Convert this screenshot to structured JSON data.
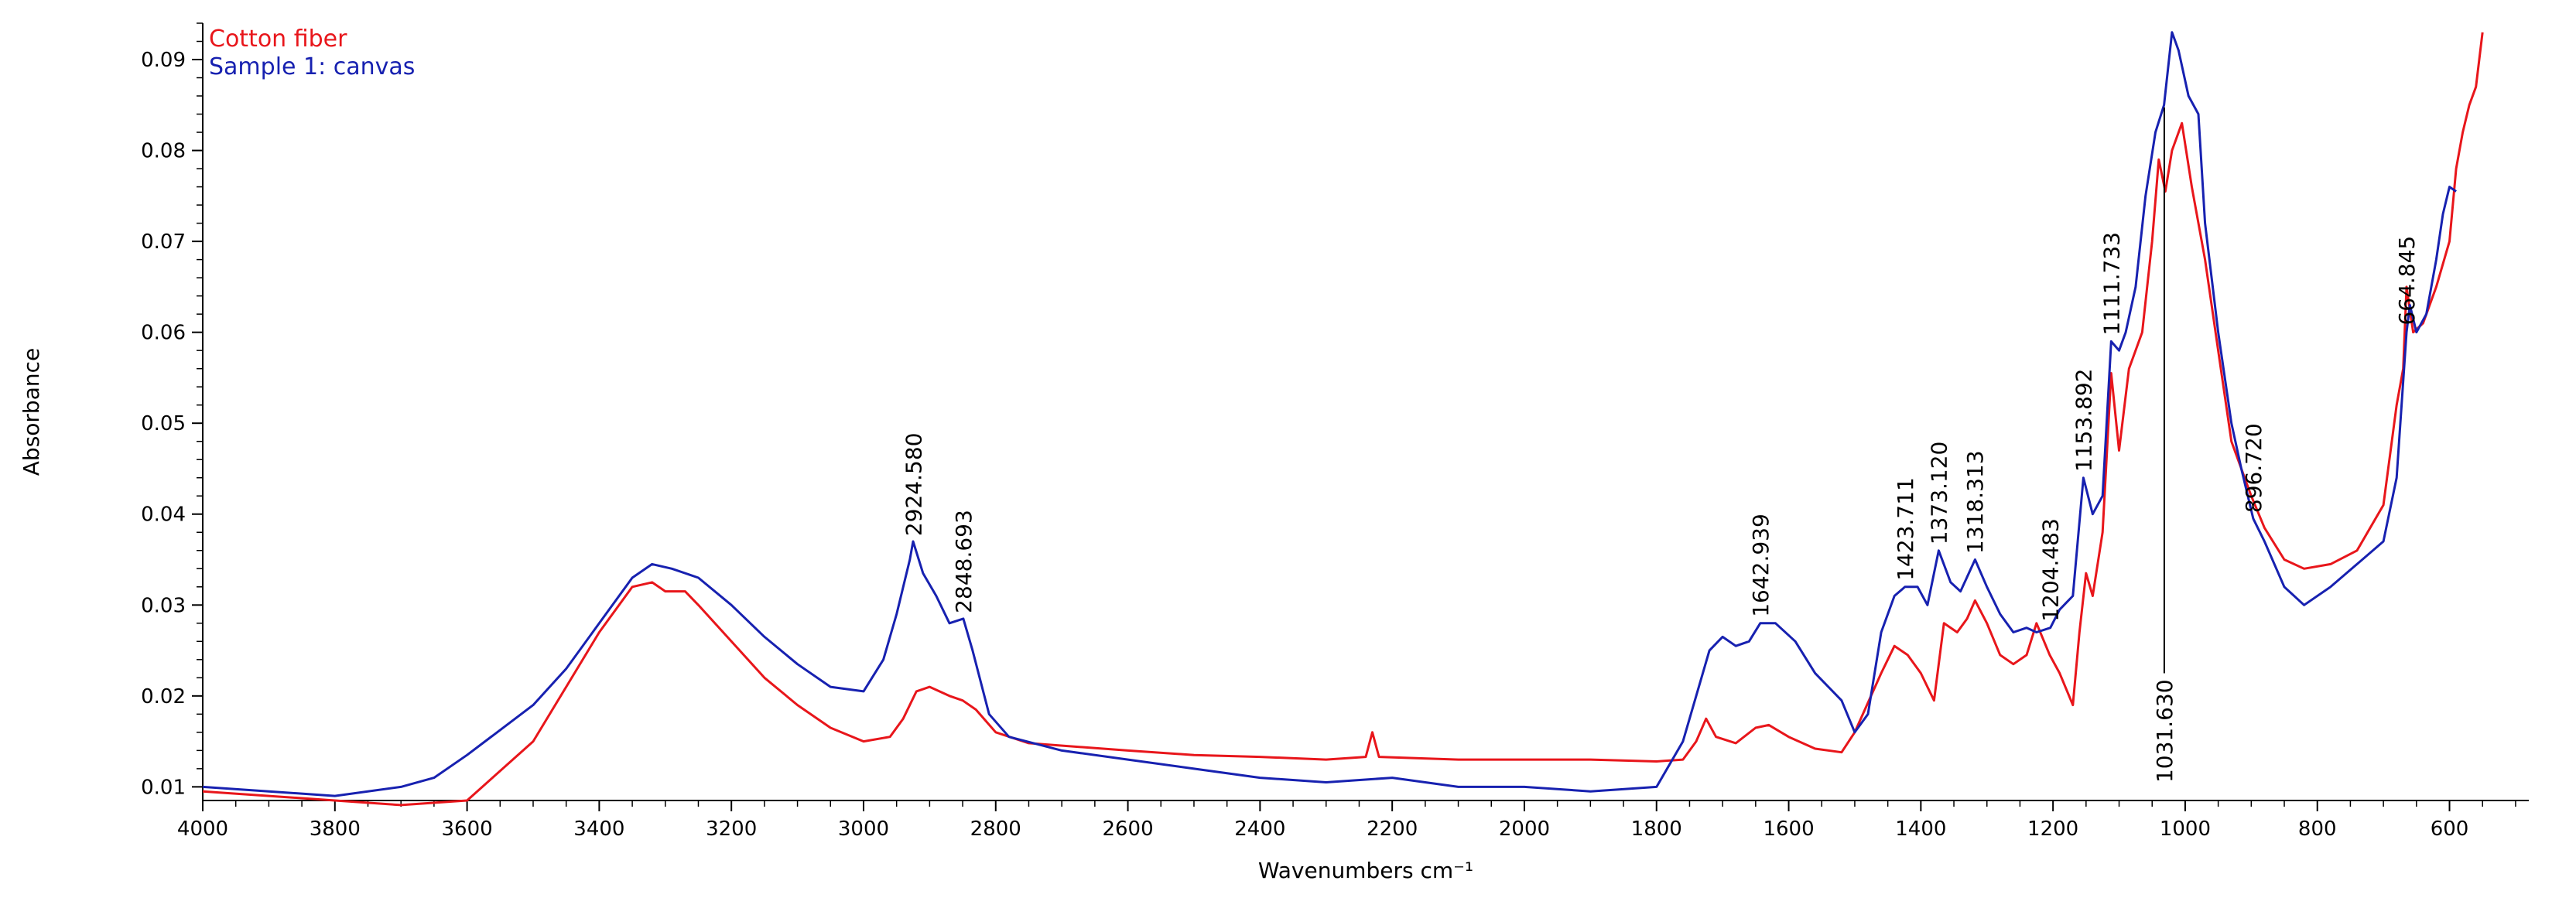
{
  "chart_data": {
    "type": "line",
    "title": "",
    "xlabel": "Wavenumbers cm⁻¹",
    "ylabel": "Absorbance",
    "xlim": [
      4000,
      480
    ],
    "ylim": [
      0.0085,
      0.094
    ],
    "x_reversed": true,
    "grid": false,
    "legend_position": "top-left",
    "x_ticks": [
      4000,
      3800,
      3600,
      3400,
      3200,
      3000,
      2800,
      2600,
      2400,
      2200,
      2000,
      1800,
      1600,
      1400,
      1200,
      1000,
      800,
      600
    ],
    "y_ticks": [
      0.01,
      0.02,
      0.03,
      0.04,
      0.05,
      0.06,
      0.07,
      0.08,
      0.09
    ],
    "series": [
      {
        "name": "Cotton fiber",
        "color": "#e8161b",
        "points": [
          [
            4000,
            0.0095
          ],
          [
            3900,
            0.009
          ],
          [
            3800,
            0.0085
          ],
          [
            3700,
            0.008
          ],
          [
            3600,
            0.0085
          ],
          [
            3500,
            0.015
          ],
          [
            3450,
            0.021
          ],
          [
            3400,
            0.027
          ],
          [
            3350,
            0.032
          ],
          [
            3320,
            0.0325
          ],
          [
            3300,
            0.0315
          ],
          [
            3270,
            0.0315
          ],
          [
            3250,
            0.03
          ],
          [
            3200,
            0.026
          ],
          [
            3150,
            0.022
          ],
          [
            3100,
            0.019
          ],
          [
            3050,
            0.0165
          ],
          [
            3000,
            0.015
          ],
          [
            2960,
            0.0155
          ],
          [
            2940,
            0.0175
          ],
          [
            2920,
            0.0205
          ],
          [
            2900,
            0.021
          ],
          [
            2870,
            0.02
          ],
          [
            2850,
            0.0195
          ],
          [
            2830,
            0.0185
          ],
          [
            2800,
            0.016
          ],
          [
            2750,
            0.0148
          ],
          [
            2600,
            0.014
          ],
          [
            2500,
            0.0135
          ],
          [
            2400,
            0.0133
          ],
          [
            2300,
            0.013
          ],
          [
            2240,
            0.0133
          ],
          [
            2230,
            0.016
          ],
          [
            2220,
            0.0133
          ],
          [
            2100,
            0.013
          ],
          [
            2000,
            0.013
          ],
          [
            1900,
            0.013
          ],
          [
            1800,
            0.0128
          ],
          [
            1760,
            0.013
          ],
          [
            1740,
            0.015
          ],
          [
            1725,
            0.0175
          ],
          [
            1710,
            0.0155
          ],
          [
            1680,
            0.0148
          ],
          [
            1650,
            0.0165
          ],
          [
            1630,
            0.0168
          ],
          [
            1600,
            0.0155
          ],
          [
            1560,
            0.0142
          ],
          [
            1520,
            0.0138
          ],
          [
            1500,
            0.016
          ],
          [
            1460,
            0.0225
          ],
          [
            1440,
            0.0255
          ],
          [
            1420,
            0.0245
          ],
          [
            1400,
            0.0225
          ],
          [
            1380,
            0.0195
          ],
          [
            1365,
            0.028
          ],
          [
            1345,
            0.027
          ],
          [
            1330,
            0.0285
          ],
          [
            1318,
            0.0305
          ],
          [
            1300,
            0.028
          ],
          [
            1280,
            0.0245
          ],
          [
            1260,
            0.0235
          ],
          [
            1240,
            0.0245
          ],
          [
            1225,
            0.028
          ],
          [
            1205,
            0.0245
          ],
          [
            1190,
            0.0225
          ],
          [
            1170,
            0.019
          ],
          [
            1160,
            0.027
          ],
          [
            1150,
            0.0335
          ],
          [
            1140,
            0.031
          ],
          [
            1125,
            0.038
          ],
          [
            1112,
            0.0555
          ],
          [
            1100,
            0.047
          ],
          [
            1085,
            0.056
          ],
          [
            1065,
            0.06
          ],
          [
            1050,
            0.07
          ],
          [
            1040,
            0.079
          ],
          [
            1030,
            0.0755
          ],
          [
            1020,
            0.08
          ],
          [
            1005,
            0.083
          ],
          [
            990,
            0.076
          ],
          [
            970,
            0.068
          ],
          [
            950,
            0.058
          ],
          [
            930,
            0.048
          ],
          [
            900,
            0.042
          ],
          [
            880,
            0.0385
          ],
          [
            850,
            0.035
          ],
          [
            820,
            0.034
          ],
          [
            780,
            0.0345
          ],
          [
            740,
            0.036
          ],
          [
            700,
            0.041
          ],
          [
            680,
            0.052
          ],
          [
            670,
            0.056
          ],
          [
            665,
            0.065
          ],
          [
            655,
            0.06
          ],
          [
            640,
            0.061
          ],
          [
            620,
            0.065
          ],
          [
            600,
            0.07
          ],
          [
            590,
            0.078
          ],
          [
            580,
            0.082
          ],
          [
            570,
            0.085
          ],
          [
            560,
            0.087
          ],
          [
            550,
            0.093
          ]
        ]
      },
      {
        "name": "Sample 1: canvas",
        "color": "#1721b0",
        "points": [
          [
            4000,
            0.01
          ],
          [
            3900,
            0.0095
          ],
          [
            3800,
            0.009
          ],
          [
            3700,
            0.01
          ],
          [
            3650,
            0.011
          ],
          [
            3600,
            0.0135
          ],
          [
            3500,
            0.019
          ],
          [
            3450,
            0.023
          ],
          [
            3400,
            0.028
          ],
          [
            3350,
            0.033
          ],
          [
            3320,
            0.0345
          ],
          [
            3290,
            0.034
          ],
          [
            3250,
            0.033
          ],
          [
            3200,
            0.03
          ],
          [
            3150,
            0.0265
          ],
          [
            3100,
            0.0235
          ],
          [
            3050,
            0.021
          ],
          [
            3000,
            0.0205
          ],
          [
            2970,
            0.024
          ],
          [
            2950,
            0.029
          ],
          [
            2930,
            0.035
          ],
          [
            2925,
            0.037
          ],
          [
            2910,
            0.0335
          ],
          [
            2890,
            0.031
          ],
          [
            2870,
            0.028
          ],
          [
            2849,
            0.0285
          ],
          [
            2835,
            0.025
          ],
          [
            2810,
            0.018
          ],
          [
            2780,
            0.0155
          ],
          [
            2700,
            0.014
          ],
          [
            2600,
            0.013
          ],
          [
            2500,
            0.012
          ],
          [
            2400,
            0.011
          ],
          [
            2300,
            0.0105
          ],
          [
            2200,
            0.011
          ],
          [
            2100,
            0.01
          ],
          [
            2000,
            0.01
          ],
          [
            1900,
            0.0095
          ],
          [
            1800,
            0.01
          ],
          [
            1760,
            0.015
          ],
          [
            1740,
            0.02
          ],
          [
            1720,
            0.025
          ],
          [
            1700,
            0.0265
          ],
          [
            1680,
            0.0255
          ],
          [
            1660,
            0.026
          ],
          [
            1643,
            0.028
          ],
          [
            1620,
            0.028
          ],
          [
            1590,
            0.026
          ],
          [
            1560,
            0.0225
          ],
          [
            1520,
            0.0195
          ],
          [
            1500,
            0.016
          ],
          [
            1480,
            0.018
          ],
          [
            1460,
            0.027
          ],
          [
            1440,
            0.031
          ],
          [
            1424,
            0.032
          ],
          [
            1405,
            0.032
          ],
          [
            1390,
            0.03
          ],
          [
            1373,
            0.036
          ],
          [
            1355,
            0.0325
          ],
          [
            1340,
            0.0315
          ],
          [
            1318,
            0.035
          ],
          [
            1300,
            0.032
          ],
          [
            1280,
            0.029
          ],
          [
            1260,
            0.027
          ],
          [
            1240,
            0.0275
          ],
          [
            1225,
            0.027
          ],
          [
            1204,
            0.0275
          ],
          [
            1190,
            0.0295
          ],
          [
            1170,
            0.031
          ],
          [
            1154,
            0.044
          ],
          [
            1140,
            0.04
          ],
          [
            1125,
            0.042
          ],
          [
            1112,
            0.059
          ],
          [
            1100,
            0.058
          ],
          [
            1090,
            0.06
          ],
          [
            1075,
            0.065
          ],
          [
            1060,
            0.075
          ],
          [
            1045,
            0.082
          ],
          [
            1032,
            0.085
          ],
          [
            1020,
            0.093
          ],
          [
            1010,
            0.091
          ],
          [
            995,
            0.086
          ],
          [
            980,
            0.084
          ],
          [
            970,
            0.072
          ],
          [
            950,
            0.06
          ],
          [
            930,
            0.05
          ],
          [
            915,
            0.045
          ],
          [
            897,
            0.0395
          ],
          [
            880,
            0.037
          ],
          [
            850,
            0.032
          ],
          [
            820,
            0.03
          ],
          [
            780,
            0.032
          ],
          [
            740,
            0.0345
          ],
          [
            700,
            0.037
          ],
          [
            680,
            0.044
          ],
          [
            665,
            0.06
          ],
          [
            660,
            0.063
          ],
          [
            650,
            0.06
          ],
          [
            635,
            0.062
          ],
          [
            620,
            0.068
          ],
          [
            610,
            0.073
          ],
          [
            600,
            0.076
          ],
          [
            590,
            0.0755
          ]
        ]
      }
    ],
    "peak_labels": [
      {
        "x": 2924.58,
        "text": "2924.580"
      },
      {
        "x": 2848.693,
        "text": "2848.693"
      },
      {
        "x": 1642.939,
        "text": "1642.939"
      },
      {
        "x": 1423.711,
        "text": "1423.711"
      },
      {
        "x": 1373.12,
        "text": "1373.120"
      },
      {
        "x": 1318.313,
        "text": "1318.313"
      },
      {
        "x": 1204.483,
        "text": "1204.483"
      },
      {
        "x": 1153.892,
        "text": "1153.892"
      },
      {
        "x": 1111.733,
        "text": "1111.733"
      },
      {
        "x": 1031.63,
        "text": "1031.630",
        "marker": true
      },
      {
        "x": 896.72,
        "text": "896.720"
      },
      {
        "x": 664.845,
        "text": "664.845"
      }
    ]
  }
}
